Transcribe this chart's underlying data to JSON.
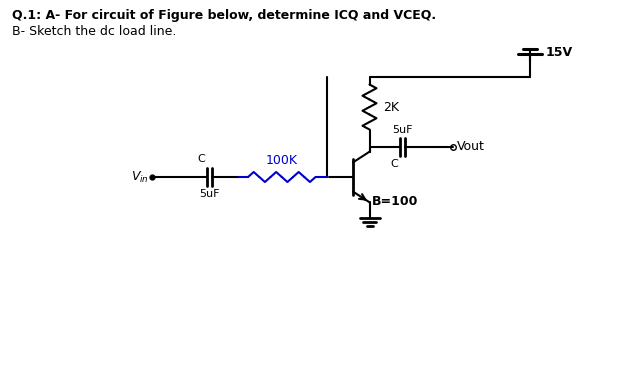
{
  "title_line1": "Q.1: A- For circuit of Figure below, determine ICQ and VCEQ.",
  "title_line2": "B- Sketch the dc load line.",
  "bg_color": "#ffffff",
  "line_color": "#000000",
  "text_color": "#000000",
  "vcc": "15V",
  "r1": "2K",
  "r2": "100K",
  "c1": "5uF",
  "c2": "5uF",
  "beta": "B=100",
  "vout": "Vout",
  "c_label": "C",
  "c_label2": "C"
}
